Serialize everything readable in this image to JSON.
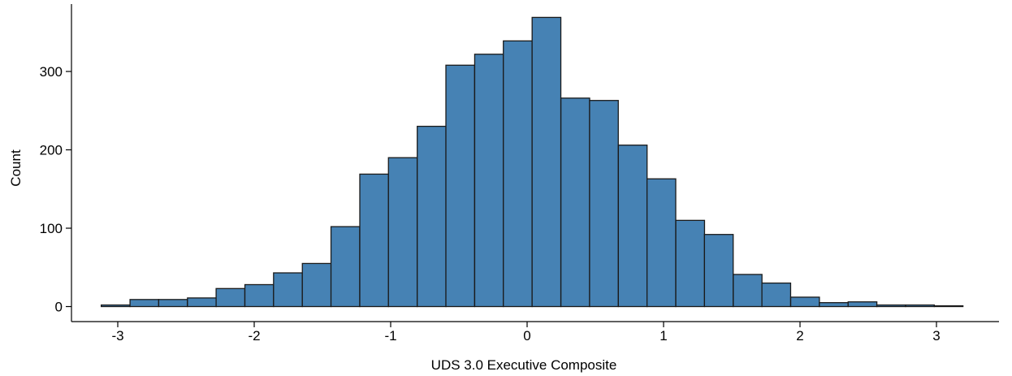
{
  "chart_data": {
    "type": "bar",
    "subtype": "histogram",
    "title": "",
    "xlabel": "UDS 3.0 Executive Composite",
    "ylabel": "Count",
    "xlim": [
      -3.35,
      3.55
    ],
    "ylim": [
      -18,
      390
    ],
    "bin_width": 0.2105,
    "bins": [
      {
        "x": -3.016,
        "count": 2
      },
      {
        "x": -2.805,
        "count": 9
      },
      {
        "x": -2.595,
        "count": 9
      },
      {
        "x": -2.384,
        "count": 11
      },
      {
        "x": -2.174,
        "count": 23
      },
      {
        "x": -1.963,
        "count": 28
      },
      {
        "x": -1.753,
        "count": 43
      },
      {
        "x": -1.542,
        "count": 55
      },
      {
        "x": -1.332,
        "count": 102
      },
      {
        "x": -1.121,
        "count": 169
      },
      {
        "x": -0.911,
        "count": 190
      },
      {
        "x": -0.7,
        "count": 230
      },
      {
        "x": -0.49,
        "count": 308
      },
      {
        "x": -0.279,
        "count": 322
      },
      {
        "x": -0.069,
        "count": 339
      },
      {
        "x": 0.142,
        "count": 369
      },
      {
        "x": 0.353,
        "count": 266
      },
      {
        "x": 0.563,
        "count": 263
      },
      {
        "x": 0.774,
        "count": 206
      },
      {
        "x": 0.984,
        "count": 163
      },
      {
        "x": 1.195,
        "count": 110
      },
      {
        "x": 1.405,
        "count": 92
      },
      {
        "x": 1.616,
        "count": 41
      },
      {
        "x": 1.826,
        "count": 30
      },
      {
        "x": 2.037,
        "count": 12
      },
      {
        "x": 2.247,
        "count": 5
      },
      {
        "x": 2.458,
        "count": 6
      },
      {
        "x": 2.668,
        "count": 2
      },
      {
        "x": 2.879,
        "count": 2
      },
      {
        "x": 3.089,
        "count": 1
      }
    ],
    "x_ticks": [
      {
        "value": -3,
        "label": "-3"
      },
      {
        "value": -2,
        "label": "-2"
      },
      {
        "value": -1,
        "label": "-1"
      },
      {
        "value": 0,
        "label": "0"
      },
      {
        "value": 1,
        "label": "1"
      },
      {
        "value": 2,
        "label": "2"
      },
      {
        "value": 3,
        "label": "3"
      }
    ],
    "y_ticks": [
      {
        "value": 0,
        "label": "0"
      },
      {
        "value": 100,
        "label": "100"
      },
      {
        "value": 200,
        "label": "200"
      },
      {
        "value": 300,
        "label": "300"
      }
    ],
    "grid": false,
    "legend": "none",
    "colors": {
      "fill": "#4682b4",
      "stroke": "#1a1a1a",
      "axis": "#000000"
    }
  }
}
